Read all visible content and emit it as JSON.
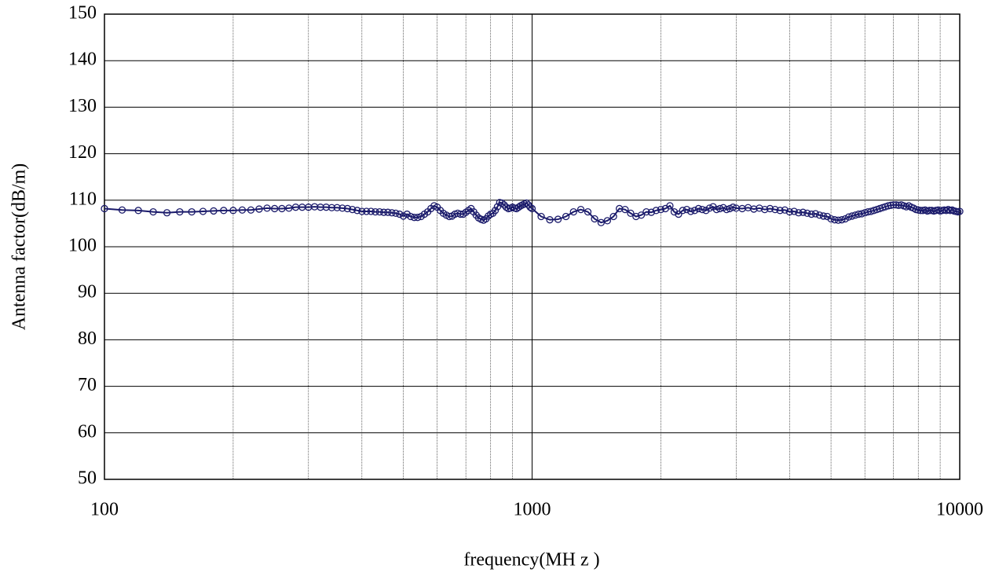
{
  "chart_data": {
    "type": "line",
    "x_label": "frequency(MH z )",
    "y_label": "Antenna factor(dB/m)",
    "x_scale": "log",
    "grid": true,
    "color": "#1b1b6b",
    "marker": "circle",
    "xlim": [
      100,
      10000
    ],
    "xticks": [
      100,
      1000,
      10000
    ],
    "x_minor_grid": [
      200,
      300,
      400,
      500,
      600,
      700,
      800,
      900,
      2000,
      3000,
      4000,
      5000,
      6000,
      7000,
      8000,
      9000
    ],
    "ylim": [
      50,
      150
    ],
    "yticks": [
      50,
      60,
      70,
      80,
      90,
      100,
      110,
      120,
      130,
      140,
      150
    ],
    "x": [
      100,
      110,
      120,
      130,
      140,
      150,
      160,
      170,
      180,
      190,
      200,
      210,
      220,
      230,
      240,
      250,
      260,
      270,
      280,
      290,
      300,
      310,
      320,
      330,
      340,
      350,
      360,
      370,
      380,
      390,
      400,
      410,
      420,
      430,
      440,
      450,
      460,
      470,
      480,
      490,
      500,
      510,
      520,
      530,
      540,
      550,
      560,
      570,
      580,
      590,
      600,
      610,
      620,
      630,
      640,
      650,
      660,
      670,
      680,
      690,
      700,
      710,
      720,
      730,
      740,
      750,
      760,
      770,
      780,
      790,
      800,
      810,
      820,
      830,
      840,
      850,
      860,
      870,
      880,
      890,
      900,
      910,
      920,
      930,
      940,
      950,
      960,
      970,
      980,
      990,
      1000,
      1050,
      1100,
      1150,
      1200,
      1250,
      1300,
      1350,
      1400,
      1450,
      1500,
      1550,
      1600,
      1650,
      1700,
      1750,
      1800,
      1850,
      1900,
      1950,
      2000,
      2050,
      2100,
      2150,
      2200,
      2250,
      2300,
      2350,
      2400,
      2450,
      2500,
      2550,
      2600,
      2650,
      2700,
      2750,
      2800,
      2850,
      2900,
      2950,
      3000,
      3100,
      3200,
      3300,
      3400,
      3500,
      3600,
      3700,
      3800,
      3900,
      4000,
      4100,
      4200,
      4300,
      4400,
      4500,
      4600,
      4700,
      4800,
      4900,
      5000,
      5100,
      5200,
      5300,
      5400,
      5500,
      5600,
      5700,
      5800,
      5900,
      6000,
      6100,
      6200,
      6300,
      6400,
      6500,
      6600,
      6700,
      6800,
      6900,
      7000,
      7100,
      7200,
      7300,
      7400,
      7500,
      7600,
      7700,
      7800,
      7900,
      8000,
      8100,
      8200,
      8300,
      8400,
      8500,
      8600,
      8700,
      8800,
      8900,
      9000,
      9100,
      9200,
      9300,
      9400,
      9500,
      9600,
      9700,
      9800,
      9900,
      10000
    ],
    "values": [
      108.2,
      107.9,
      107.8,
      107.5,
      107.3,
      107.5,
      107.5,
      107.6,
      107.7,
      107.8,
      107.8,
      107.9,
      107.9,
      108.1,
      108.3,
      108.2,
      108.2,
      108.3,
      108.5,
      108.5,
      108.5,
      108.6,
      108.5,
      108.5,
      108.4,
      108.4,
      108.3,
      108.2,
      108.0,
      107.8,
      107.6,
      107.6,
      107.6,
      107.5,
      107.5,
      107.4,
      107.4,
      107.3,
      107.2,
      107.0,
      106.6,
      107.0,
      106.5,
      106.3,
      106.3,
      106.5,
      107.0,
      107.5,
      108.2,
      108.8,
      108.5,
      107.8,
      107.2,
      106.8,
      106.5,
      106.6,
      107.0,
      107.2,
      107.0,
      107.0,
      107.4,
      107.8,
      108.2,
      107.5,
      106.8,
      106.2,
      105.9,
      105.7,
      106.0,
      106.6,
      107.0,
      107.2,
      107.8,
      108.6,
      109.5,
      109.4,
      109.0,
      108.5,
      108.2,
      108.3,
      108.5,
      108.3,
      108.2,
      108.5,
      108.8,
      109.0,
      109.2,
      109.4,
      109.0,
      108.5,
      108.2,
      106.5,
      105.8,
      105.9,
      106.5,
      107.5,
      108.0,
      107.5,
      106.0,
      105.2,
      105.6,
      106.5,
      108.2,
      108.0,
      107.2,
      106.5,
      106.8,
      107.5,
      107.4,
      107.8,
      108.0,
      108.2,
      108.8,
      107.5,
      107.0,
      107.8,
      108.0,
      107.6,
      107.8,
      108.2,
      108.0,
      107.8,
      108.3,
      108.6,
      108.0,
      108.2,
      108.4,
      108.0,
      108.2,
      108.5,
      108.3,
      108.2,
      108.4,
      108.1,
      108.3,
      108.0,
      108.2,
      108.0,
      107.8,
      107.9,
      107.5,
      107.6,
      107.3,
      107.4,
      107.2,
      107.0,
      107.1,
      106.8,
      106.6,
      106.5,
      106.0,
      105.8,
      105.7,
      105.8,
      106.0,
      106.4,
      106.6,
      106.8,
      107.0,
      107.1,
      107.3,
      107.5,
      107.6,
      107.8,
      108.0,
      108.2,
      108.4,
      108.6,
      108.8,
      108.9,
      109.0,
      109.0,
      108.9,
      109.0,
      108.8,
      108.6,
      108.8,
      108.5,
      108.3,
      108.0,
      107.9,
      107.8,
      107.8,
      107.9,
      107.7,
      107.8,
      107.8,
      107.7,
      107.8,
      107.9,
      107.7,
      107.8,
      107.9,
      107.8,
      108.0,
      107.8,
      107.9,
      107.7,
      107.6,
      107.5,
      107.6
    ]
  }
}
